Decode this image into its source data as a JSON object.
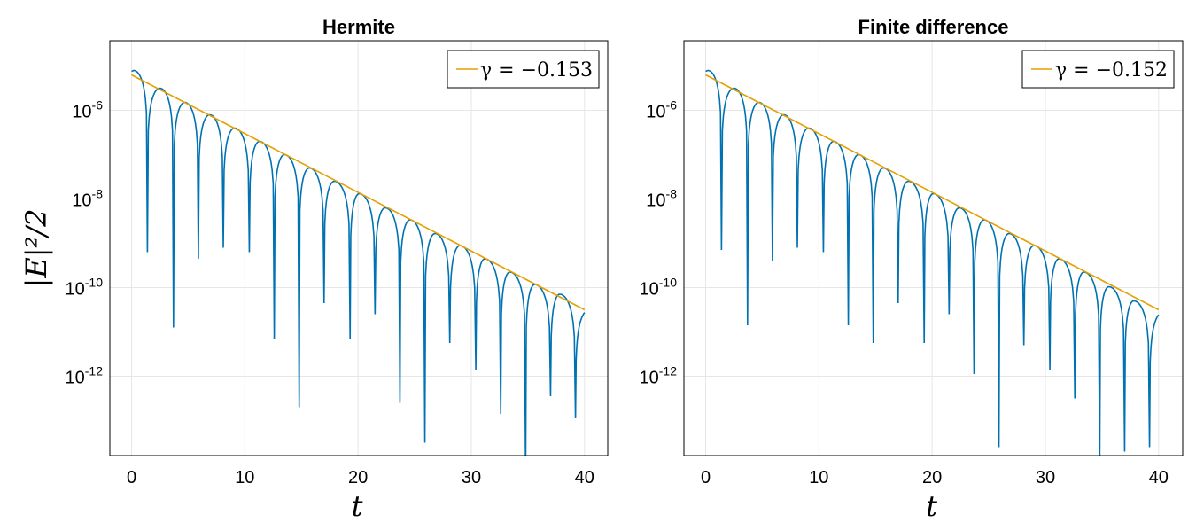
{
  "figure": {
    "ylabel": "|E|²/2",
    "colors": {
      "signal": "#0072b2",
      "fit": "#e69f00",
      "grid": "#e6e6e6"
    }
  },
  "chart_data": [
    {
      "type": "line",
      "title": "Hermite",
      "xlabel": "t",
      "ylabel": "|E|²/2",
      "xlim": [
        -2,
        42
      ],
      "ylim_log10": [
        -13.8,
        -4.5
      ],
      "xticks": [
        0,
        10,
        20,
        30,
        40
      ],
      "xtick_labels": [
        "0",
        "10",
        "20",
        "30",
        "40"
      ],
      "yticks_log10": [
        -6,
        -8,
        -10,
        -12
      ],
      "ytick_labels": [
        "10-6",
        "10-8",
        "10-10",
        "10-12"
      ],
      "grid": true,
      "legend_position": "top-right",
      "series": [
        {
          "name": "|E|²/2",
          "style": "oscillating-decay",
          "peaks_t": [
            0.2,
            2.5,
            4.7,
            6.9,
            9.1,
            11.3,
            13.5,
            15.7,
            17.9,
            20.1,
            22.4,
            24.6,
            26.8,
            29.0,
            31.2,
            33.4,
            35.6,
            37.8
          ],
          "peaks_log10": [
            -5.1,
            -5.5,
            -5.82,
            -6.1,
            -6.4,
            -6.7,
            -7.0,
            -7.3,
            -7.6,
            -7.88,
            -8.2,
            -8.47,
            -8.78,
            -9.05,
            -9.35,
            -9.65,
            -9.93,
            -10.15
          ],
          "zeros_t": [
            1.4,
            3.7,
            5.9,
            8.1,
            10.4,
            12.6,
            14.8,
            17.0,
            19.3,
            21.5,
            23.7,
            25.9,
            28.1,
            30.4,
            32.6,
            34.8,
            37.0,
            39.2
          ],
          "zeros_log10": [
            -9.2,
            -10.9,
            -9.35,
            -9.1,
            -9.2,
            -11.15,
            -12.7,
            -10.35,
            -11.15,
            -10.6,
            -12.6,
            -13.5,
            -11.25,
            -11.85,
            -12.85,
            -14.3,
            -12.45,
            -12.95
          ],
          "end": [
            40.0,
            -10.6
          ]
        },
        {
          "name": "γ = −0.153",
          "style": "straight-fit",
          "x": [
            0,
            40
          ],
          "y_log10": [
            -5.2,
            -10.5
          ]
        }
      ]
    },
    {
      "type": "line",
      "title": "Finite difference",
      "xlabel": "t",
      "ylabel": "",
      "xlim": [
        -2,
        42
      ],
      "ylim_log10": [
        -13.8,
        -4.5
      ],
      "xticks": [
        0,
        10,
        20,
        30,
        40
      ],
      "xtick_labels": [
        "0",
        "10",
        "20",
        "30",
        "40"
      ],
      "yticks_log10": [
        -6,
        -8,
        -10,
        -12
      ],
      "ytick_labels": [
        "10-6",
        "10-8",
        "10-10",
        "10-12"
      ],
      "grid": true,
      "legend_position": "top-right",
      "series": [
        {
          "name": "|E|²/2",
          "style": "oscillating-decay",
          "peaks_t": [
            0.2,
            2.5,
            4.7,
            6.9,
            9.1,
            11.3,
            13.5,
            15.7,
            17.9,
            20.1,
            22.4,
            24.6,
            26.8,
            29.0,
            31.2,
            33.4,
            35.6,
            37.8
          ],
          "peaks_log10": [
            -5.1,
            -5.5,
            -5.82,
            -6.1,
            -6.4,
            -6.7,
            -7.0,
            -7.3,
            -7.6,
            -7.88,
            -8.2,
            -8.47,
            -8.78,
            -9.05,
            -9.35,
            -9.65,
            -9.98,
            -10.3
          ],
          "zeros_t": [
            1.4,
            3.7,
            5.9,
            8.1,
            10.4,
            12.6,
            14.8,
            17.0,
            19.3,
            21.5,
            23.7,
            25.9,
            28.1,
            30.4,
            32.6,
            34.8,
            37.0,
            39.2
          ],
          "zeros_log10": [
            -9.15,
            -10.85,
            -9.4,
            -9.1,
            -9.2,
            -10.85,
            -11.25,
            -10.35,
            -11.25,
            -10.6,
            -11.95,
            -13.6,
            -11.3,
            -11.85,
            -12.5,
            -14.0,
            -13.7,
            -13.6
          ],
          "end": [
            40.0,
            -10.65
          ]
        },
        {
          "name": "γ = −0.152",
          "style": "straight-fit",
          "x": [
            0,
            40
          ],
          "y_log10": [
            -5.2,
            -10.5
          ]
        }
      ]
    }
  ]
}
